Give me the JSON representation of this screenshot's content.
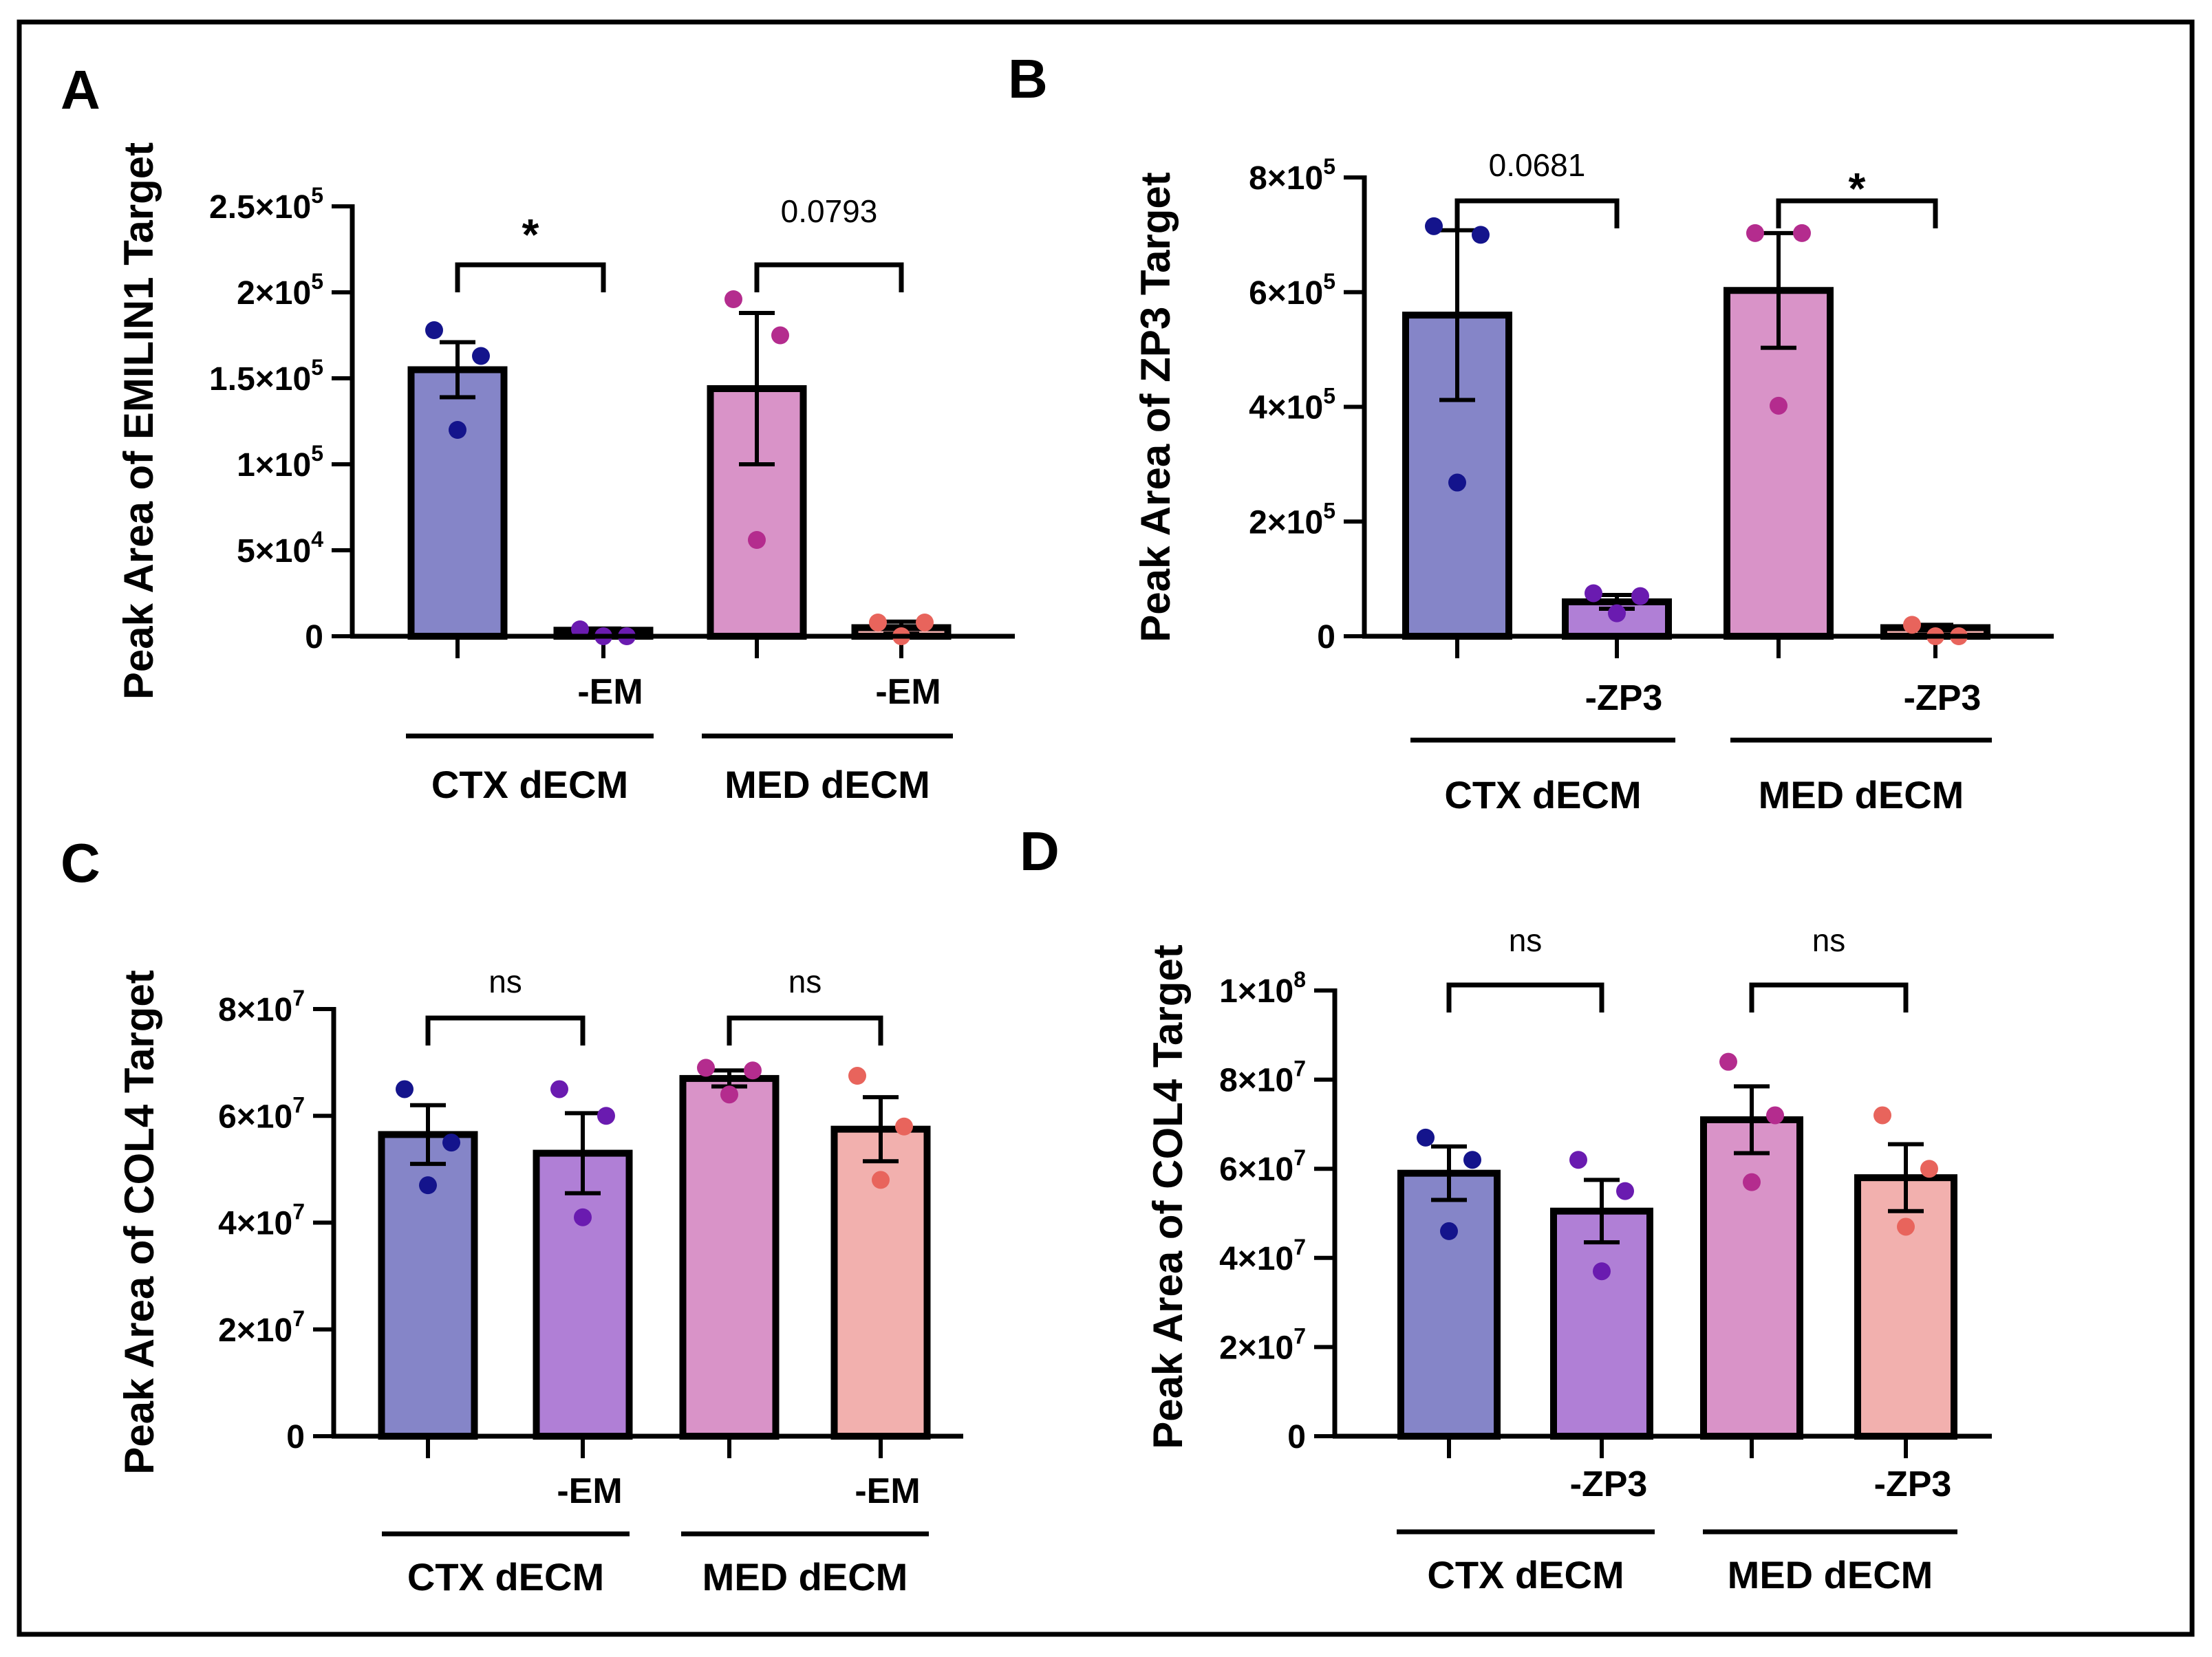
{
  "colors": {
    "ctx": "#8585C8",
    "ctx_minus": "#B07FD6",
    "med": "#D993C8",
    "med_minus": "#F2B0AE",
    "dot_ctx": "#14148C",
    "dot_ctx_minus": "#6A1BB0",
    "dot_med": "#B42C8E",
    "dot_med_minus": "#E8645C"
  },
  "chart_data": [
    {
      "panel": "A",
      "type": "bar",
      "ylabel": "Peak Area of EMILIN1 Target",
      "ylim": [
        0,
        250000
      ],
      "yticks": [
        {
          "v": 0,
          "m": "0",
          "e": ""
        },
        {
          "v": 50000,
          "m": "5×10",
          "e": "4"
        },
        {
          "v": 100000,
          "m": "1×10",
          "e": "5"
        },
        {
          "v": 150000,
          "m": "1.5×10",
          "e": "5"
        },
        {
          "v": 200000,
          "m": "2×10",
          "e": "5"
        },
        {
          "v": 250000,
          "m": "2.5×10",
          "e": "5"
        }
      ],
      "bars": [
        {
          "label": "",
          "mean": 155000,
          "sem": 16000,
          "points": [
            178000,
            163000,
            120000
          ],
          "color": "ctx",
          "dot": "dot_ctx"
        },
        {
          "label": "-EM",
          "mean": 3500,
          "sem": 1000,
          "points": [
            4000,
            0,
            0
          ],
          "color": "ctx_minus",
          "dot": "dot_ctx_minus"
        },
        {
          "label": "",
          "mean": 144000,
          "sem": 44000,
          "points": [
            196000,
            175000,
            56000
          ],
          "color": "med",
          "dot": "dot_med"
        },
        {
          "label": "-EM",
          "mean": 5000,
          "sem": 3500,
          "points": [
            8000,
            8000,
            0
          ],
          "color": "med_minus",
          "dot": "dot_med_minus"
        }
      ],
      "groups": [
        "CTX dECM",
        "MED dECM"
      ],
      "comparisons": [
        {
          "pair": [
            0,
            1
          ],
          "label": "*"
        },
        {
          "pair": [
            2,
            3
          ],
          "label": "0.0793"
        }
      ]
    },
    {
      "panel": "B",
      "type": "bar",
      "ylabel": "Peak Area of ZP3 Target",
      "ylim": [
        0,
        800000
      ],
      "yticks": [
        {
          "v": 0,
          "m": "0",
          "e": ""
        },
        {
          "v": 200000,
          "m": "2×10",
          "e": "5"
        },
        {
          "v": 400000,
          "m": "4×10",
          "e": "5"
        },
        {
          "v": 600000,
          "m": "6×10",
          "e": "5"
        },
        {
          "v": 800000,
          "m": "8×10",
          "e": "5"
        }
      ],
      "bars": [
        {
          "label": "",
          "mean": 560000,
          "sem": 148000,
          "points": [
            715000,
            700000,
            268000
          ],
          "color": "ctx",
          "dot": "dot_ctx"
        },
        {
          "label": "-ZP3",
          "mean": 60000,
          "sem": 12000,
          "points": [
            75000,
            70000,
            40000
          ],
          "color": "ctx_minus",
          "dot": "dot_ctx_minus"
        },
        {
          "label": "",
          "mean": 603000,
          "sem": 100000,
          "points": [
            703000,
            703000,
            402000
          ],
          "color": "med",
          "dot": "dot_med"
        },
        {
          "label": "-ZP3",
          "mean": 15000,
          "sem": 5000,
          "points": [
            20000,
            0,
            0
          ],
          "color": "med_minus",
          "dot": "dot_med_minus"
        }
      ],
      "groups": [
        "CTX dECM",
        "MED dECM"
      ],
      "comparisons": [
        {
          "pair": [
            0,
            1
          ],
          "label": "0.0681"
        },
        {
          "pair": [
            2,
            3
          ],
          "label": "*"
        }
      ]
    },
    {
      "panel": "C",
      "type": "bar",
      "ylabel": "Peak Area of COL4 Target",
      "ylim": [
        0,
        80000000
      ],
      "yticks": [
        {
          "v": 0,
          "m": "0",
          "e": ""
        },
        {
          "v": 20000000,
          "m": "2×10",
          "e": "7"
        },
        {
          "v": 40000000,
          "m": "4×10",
          "e": "7"
        },
        {
          "v": 60000000,
          "m": "6×10",
          "e": "7"
        },
        {
          "v": 80000000,
          "m": "8×10",
          "e": "7"
        }
      ],
      "bars": [
        {
          "label": "",
          "mean": 56500000,
          "sem": 5500000,
          "points": [
            65000000,
            55000000,
            47000000
          ],
          "color": "ctx",
          "dot": "dot_ctx"
        },
        {
          "label": "-EM",
          "mean": 53000000,
          "sem": 7500000,
          "points": [
            65000000,
            60000000,
            41000000
          ],
          "color": "ctx_minus",
          "dot": "dot_ctx_minus"
        },
        {
          "label": "",
          "mean": 67000000,
          "sem": 1500000,
          "points": [
            69000000,
            68500000,
            64000000
          ],
          "color": "med",
          "dot": "dot_med"
        },
        {
          "label": "-EM",
          "mean": 57500000,
          "sem": 6000000,
          "points": [
            67500000,
            58000000,
            48000000
          ],
          "color": "med_minus",
          "dot": "dot_med_minus"
        }
      ],
      "groups": [
        "CTX dECM",
        "MED dECM"
      ],
      "comparisons": [
        {
          "pair": [
            0,
            1
          ],
          "label": "ns"
        },
        {
          "pair": [
            2,
            3
          ],
          "label": "ns"
        }
      ]
    },
    {
      "panel": "D",
      "type": "bar",
      "ylabel": "Peak Area of COL4 Target",
      "ylim": [
        0,
        100000000
      ],
      "yticks": [
        {
          "v": 0,
          "m": "0",
          "e": ""
        },
        {
          "v": 20000000,
          "m": "2×10",
          "e": "7"
        },
        {
          "v": 40000000,
          "m": "4×10",
          "e": "7"
        },
        {
          "v": 60000000,
          "m": "6×10",
          "e": "7"
        },
        {
          "v": 80000000,
          "m": "8×10",
          "e": "7"
        },
        {
          "v": 100000000,
          "m": "1×10",
          "e": "8"
        }
      ],
      "bars": [
        {
          "label": "",
          "mean": 59000000,
          "sem": 6000000,
          "points": [
            67000000,
            62000000,
            46000000
          ],
          "color": "ctx",
          "dot": "dot_ctx"
        },
        {
          "label": "-ZP3",
          "mean": 50500000,
          "sem": 7000000,
          "points": [
            62000000,
            55000000,
            37000000
          ],
          "color": "ctx_minus",
          "dot": "dot_ctx_minus"
        },
        {
          "label": "",
          "mean": 71000000,
          "sem": 7500000,
          "points": [
            84000000,
            72000000,
            57000000
          ],
          "color": "med",
          "dot": "dot_med"
        },
        {
          "label": "-ZP3",
          "mean": 58000000,
          "sem": 7500000,
          "points": [
            72000000,
            60000000,
            47000000
          ],
          "color": "med_minus",
          "dot": "dot_med_minus"
        }
      ],
      "groups": [
        "CTX dECM",
        "MED dECM"
      ],
      "comparisons": [
        {
          "pair": [
            0,
            1
          ],
          "label": "ns"
        },
        {
          "pair": [
            2,
            3
          ],
          "label": "ns"
        }
      ]
    }
  ]
}
